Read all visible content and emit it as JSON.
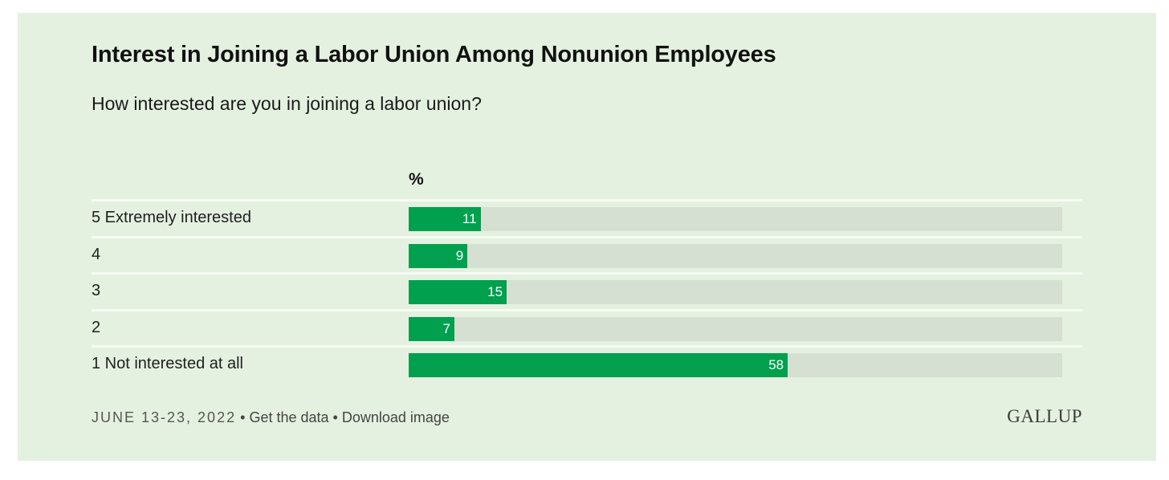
{
  "chart_data": {
    "type": "bar",
    "orientation": "horizontal",
    "title": "Interest in Joining a Labor Union Among Nonunion Employees",
    "subtitle": "How interested are you in joining a labor union?",
    "unit_label": "%",
    "categories": [
      "5 Extremely interested",
      "4",
      "3",
      "2",
      "1 Not interested at all"
    ],
    "values": [
      11,
      9,
      15,
      7,
      58
    ],
    "xlim": [
      0,
      100
    ],
    "grid": false,
    "colors": {
      "bar": "#00a04e",
      "track": "#d5e0d2",
      "background": "#e4f1e0"
    }
  },
  "footer": {
    "date": "JUNE 13-23, 2022",
    "separator": "•",
    "get_data": "Get the data",
    "download": "Download image"
  },
  "logo": "GALLUP"
}
